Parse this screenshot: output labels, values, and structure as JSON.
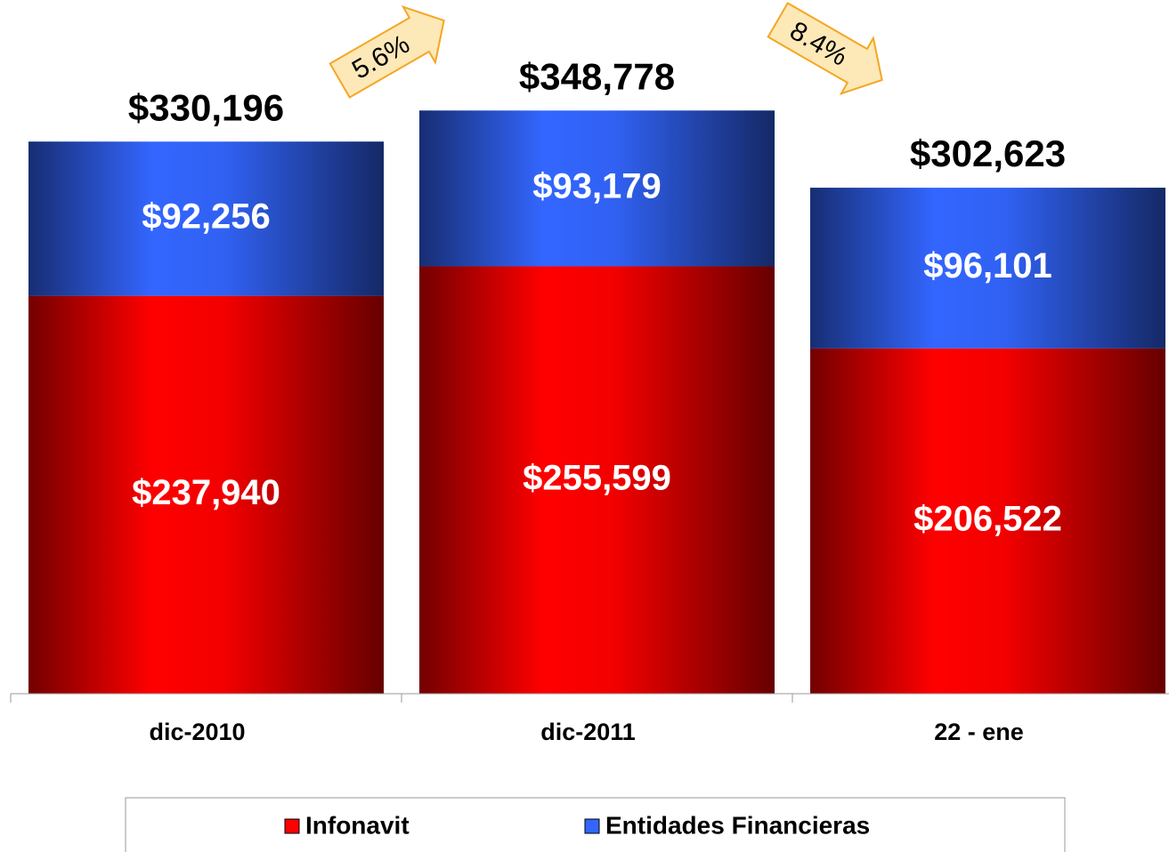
{
  "chart_data": {
    "type": "stacked_bar",
    "categories": [
      "dic-2010",
      "dic-2011",
      "22 - ene"
    ],
    "series": [
      {
        "name": "Infonavit",
        "color": "#ff0000",
        "values": [
          237940,
          255599,
          206522
        ],
        "value_labels": [
          "$237,940",
          "$255,599",
          "$206,522"
        ]
      },
      {
        "name": "Entidades Financieras",
        "color": "#3366ff",
        "values": [
          92256,
          93179,
          96101
        ],
        "value_labels": [
          "$92,256",
          "$93,179",
          "$96,101"
        ]
      }
    ],
    "totals": [
      330196,
      348778,
      302623
    ],
    "total_labels": [
      "$330,196",
      "$348,778",
      "$302,623"
    ],
    "annotations": [
      {
        "text": "5.6%",
        "direction": "up"
      },
      {
        "text": "8.4%",
        "direction": "down"
      }
    ],
    "ylim": [
      0,
      350000
    ],
    "legend": "bottom"
  }
}
